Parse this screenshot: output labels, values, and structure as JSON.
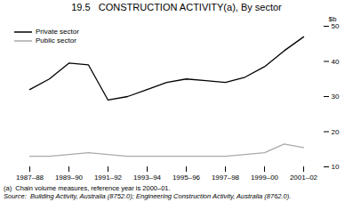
{
  "chart_data": {
    "type": "line",
    "title": "19.5   CONSTRUCTION ACTIVITY(a), By sector",
    "ylabel": "$b",
    "categories": [
      "1987–88",
      null,
      "1989–90",
      null,
      "1991–92",
      null,
      "1993–94",
      null,
      "1995–96",
      null,
      "1997–98",
      null,
      "1999–00",
      null,
      "2001–02"
    ],
    "series": [
      {
        "name": "Private sector",
        "color": "#000000",
        "values": [
          32.0,
          35.0,
          39.5,
          39.0,
          29.0,
          30.0,
          32.0,
          34.0,
          35.0,
          34.5,
          34.0,
          35.5,
          38.5,
          43.0,
          47.0
        ]
      },
      {
        "name": "Public sector",
        "color": "#aaaaaa",
        "values": [
          13.0,
          13.0,
          13.5,
          14.0,
          13.5,
          13.0,
          13.0,
          13.0,
          13.0,
          13.0,
          13.0,
          13.5,
          14.0,
          16.5,
          15.5
        ]
      }
    ],
    "ylim": [
      10,
      50
    ],
    "yticks": [
      10,
      20,
      30,
      40,
      50
    ],
    "grid": false,
    "legend": "upper left",
    "annotations": [
      "(a)  Chain volume measures, reference year is 2000–01.",
      "Source:  Building Activity, Australia (8752.0); Engineering Construction Activity, Australia (8762.0)."
    ]
  }
}
